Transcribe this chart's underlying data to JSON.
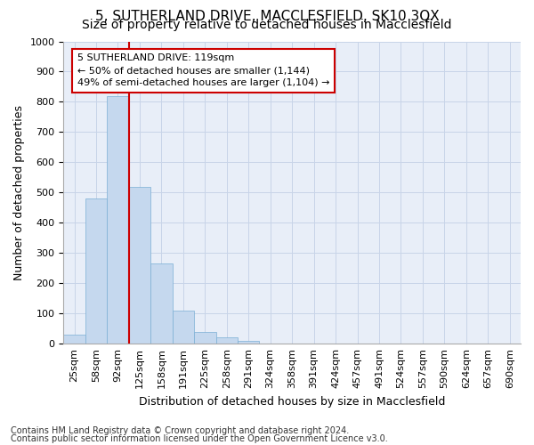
{
  "title": "5, SUTHERLAND DRIVE, MACCLESFIELD, SK10 3QX",
  "subtitle": "Size of property relative to detached houses in Macclesfield",
  "xlabel": "Distribution of detached houses by size in Macclesfield",
  "ylabel": "Number of detached properties",
  "footnote1": "Contains HM Land Registry data © Crown copyright and database right 2024.",
  "footnote2": "Contains public sector information licensed under the Open Government Licence v3.0.",
  "bar_labels": [
    "25sqm",
    "58sqm",
    "92sqm",
    "125sqm",
    "158sqm",
    "191sqm",
    "225sqm",
    "258sqm",
    "291sqm",
    "324sqm",
    "358sqm",
    "391sqm",
    "424sqm",
    "457sqm",
    "491sqm",
    "524sqm",
    "557sqm",
    "590sqm",
    "624sqm",
    "657sqm",
    "690sqm"
  ],
  "bar_values": [
    30,
    480,
    820,
    520,
    265,
    110,
    40,
    22,
    10,
    0,
    0,
    0,
    0,
    0,
    0,
    0,
    0,
    0,
    0,
    0,
    0
  ],
  "bar_color": "#c5d8ee",
  "bar_edge_color": "#7bafd4",
  "ylim": [
    0,
    1000
  ],
  "yticks": [
    0,
    100,
    200,
    300,
    400,
    500,
    600,
    700,
    800,
    900,
    1000
  ],
  "vline_x_index": 2.5,
  "vline_color": "#cc0000",
  "annotation_box_text": "5 SUTHERLAND DRIVE: 119sqm\n← 50% of detached houses are smaller (1,144)\n49% of semi-detached houses are larger (1,104) →",
  "annotation_box_facecolor": "white",
  "annotation_box_edgecolor": "#cc0000",
  "plot_bg_color": "#e8eef8",
  "fig_bg_color": "#ffffff",
  "grid_color": "#c8d4e8",
  "title_fontsize": 11,
  "subtitle_fontsize": 10,
  "axis_label_fontsize": 9,
  "tick_fontsize": 8,
  "annotation_fontsize": 8,
  "footnote_fontsize": 7
}
